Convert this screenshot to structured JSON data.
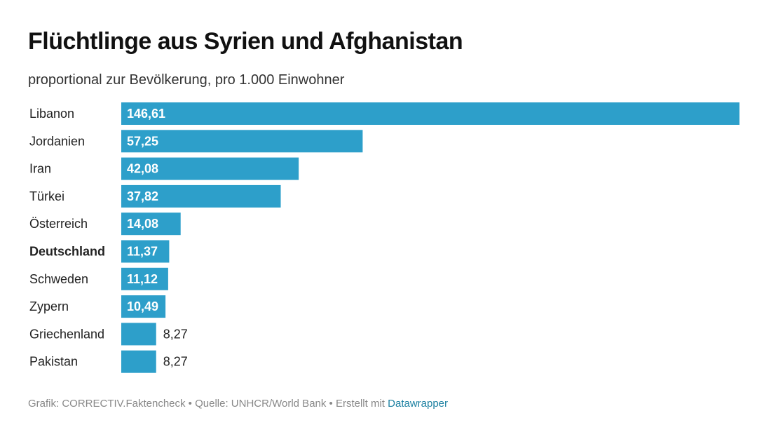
{
  "chart_data": {
    "type": "bar",
    "orientation": "horizontal",
    "title": "Flüchtlinge aus Syrien und Afghanistan",
    "subtitle": "proportional zur Bevölkerung, pro 1.000 Einwohner",
    "categories": [
      "Libanon",
      "Jordanien",
      "Iran",
      "Türkei",
      "Österreich",
      "Deutschland",
      "Schweden",
      "Zypern",
      "Griechenland",
      "Pakistan"
    ],
    "values": [
      146.61,
      57.25,
      42.08,
      37.82,
      14.08,
      11.37,
      11.12,
      10.49,
      8.27,
      8.27
    ],
    "value_labels": [
      "146,61",
      "57,25",
      "42,08",
      "37,82",
      "14,08",
      "11,37",
      "11,12",
      "10,49",
      "8,27",
      "8,27"
    ],
    "highlight": "Deutschland",
    "xlim": [
      0,
      146.61
    ],
    "bar_color": "#2d9fca",
    "xlabel": "",
    "ylabel": ""
  },
  "footer": {
    "text": "Grafik: CORRECTIV.Faktencheck • Quelle: UNHCR/World Bank • Erstellt mit",
    "link": "Datawrapper"
  }
}
